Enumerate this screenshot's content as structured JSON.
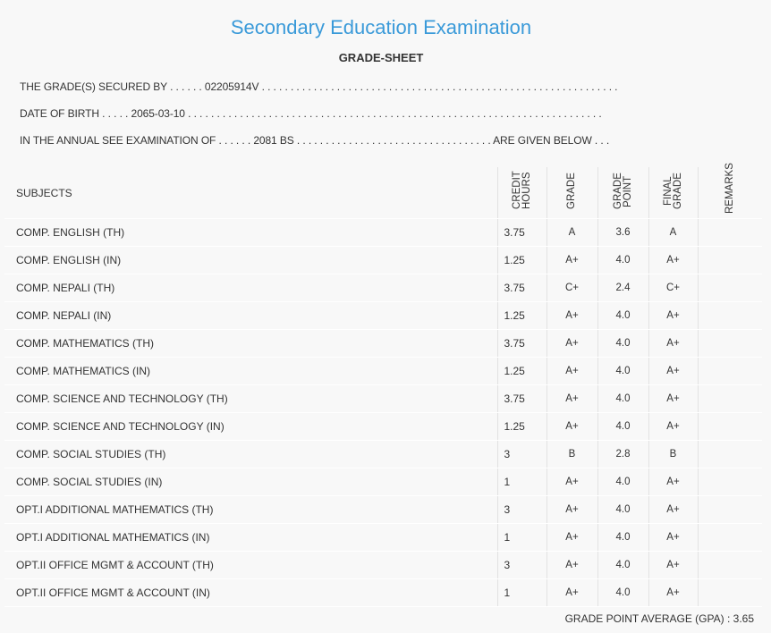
{
  "header": {
    "title": "Secondary Education Examination",
    "subtitle": "GRADE-SHEET"
  },
  "info": [
    "THE GRADE(S) SECURED BY . . . . . . 02205914V . . . . . . . . . . . . . . . . . . . . . . . . . . . . . . . . . . . . . . . . . . . . . . . . . . . . . . . . . . . . . .",
    "DATE OF BIRTH . . . . . 2065-03-10 . . . . . . . . . . . . . . . . . . . . . . . . . . . . . . . . . . . . . . . . . . . . . . . . . . . . . . . . . . . . . . . . . . . . . . . .",
    "IN THE ANNUAL SEE EXAMINATION OF . . . . . . 2081 BS . . . . . . . . . . . . . . . . . . . . . . . . . . . . . . . . . . ARE GIVEN BELOW . . ."
  ],
  "table": {
    "columns": [
      "SUBJECTS",
      "CREDIT HOURS",
      "GRADE",
      "GRADE POINT",
      "FINAL GRADE",
      "REMARKS"
    ],
    "rows": [
      [
        "COMP. ENGLISH (TH)",
        "3.75",
        "A",
        "3.6",
        "A"
      ],
      [
        "COMP. ENGLISH (IN)",
        "1.25",
        "A+",
        "4.0",
        "A+"
      ],
      [
        "COMP. NEPALI (TH)",
        "3.75",
        "C+",
        "2.4",
        "C+"
      ],
      [
        "COMP. NEPALI (IN)",
        "1.25",
        "A+",
        "4.0",
        "A+"
      ],
      [
        "COMP. MATHEMATICS (TH)",
        "3.75",
        "A+",
        "4.0",
        "A+"
      ],
      [
        "COMP. MATHEMATICS (IN)",
        "1.25",
        "A+",
        "4.0",
        "A+"
      ],
      [
        "COMP. SCIENCE AND TECHNOLOGY (TH)",
        "3.75",
        "A+",
        "4.0",
        "A+"
      ],
      [
        "COMP. SCIENCE AND TECHNOLOGY (IN)",
        "1.25",
        "A+",
        "4.0",
        "A+"
      ],
      [
        "COMP. SOCIAL STUDIES (TH)",
        "3",
        "B",
        "2.8",
        "B"
      ],
      [
        "COMP. SOCIAL STUDIES (IN)",
        "1",
        "A+",
        "4.0",
        "A+"
      ],
      [
        "OPT.I ADDITIONAL MATHEMATICS (TH)",
        "3",
        "A+",
        "4.0",
        "A+"
      ],
      [
        "OPT.I ADDITIONAL MATHEMATICS (IN)",
        "1",
        "A+",
        "4.0",
        "A+"
      ],
      [
        "OPT.II OFFICE MGMT & ACCOUNT (TH)",
        "3",
        "A+",
        "4.0",
        "A+"
      ],
      [
        "OPT.II OFFICE MGMT & ACCOUNT (IN)",
        "1",
        "A+",
        "4.0",
        "A+"
      ]
    ]
  },
  "footer": {
    "gpa_label": "GRADE POINT AVERAGE (GPA) :",
    "gpa": "3.65"
  }
}
